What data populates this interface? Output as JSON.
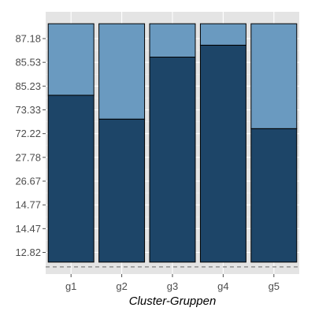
{
  "chart_data": {
    "type": "bar",
    "stacked": true,
    "xlabel": "Cluster-Gruppen",
    "ylabel": "",
    "categories": [
      "g1",
      "g2",
      "g3",
      "g4",
      "g5"
    ],
    "y_tick_labels": [
      "12.82",
      "14.47",
      "14.77",
      "26.67",
      "27.78",
      "72.22",
      "73.33",
      "85.23",
      "85.53",
      "87.18"
    ],
    "series": [
      {
        "values": [
          0.7,
          0.6,
          0.86,
          0.91,
          0.56
        ],
        "color": "#1d4568"
      },
      {
        "values": [
          0.3,
          0.4,
          0.14,
          0.09,
          0.44
        ],
        "color": "#6a9ac0"
      }
    ],
    "ylim": [
      -0.05,
      1.05
    ],
    "reference_line": {
      "value": -0.02,
      "style": "dashed"
    },
    "grid": true,
    "panel_background": "#e4e4e4",
    "grid_color": "#ffffff"
  }
}
